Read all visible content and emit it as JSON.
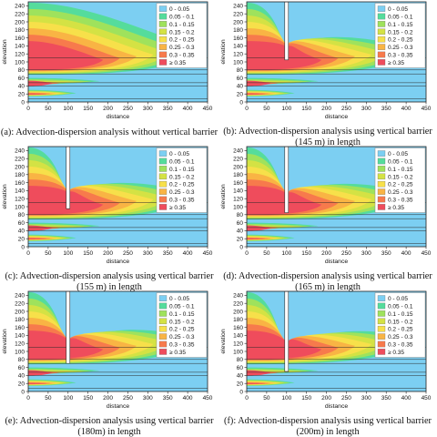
{
  "legend_entries": [
    "0 - 0.05",
    "0.05 - 0.1",
    "0.1 - 0.15",
    "0.15 - 0.2",
    "0.2 - 0.25",
    "0.25 - 0.3",
    "0.3 - 0.35",
    "≥ 0.35"
  ],
  "colors": {
    "band_0": "#7ccff2",
    "band_1": "#55dc9c",
    "band_2": "#9fe25c",
    "band_3": "#d4e244",
    "band_4": "#f7e04a",
    "band_5": "#f9b444",
    "band_6": "#f77a4c",
    "band_7": "#ef4c5c"
  },
  "chart_data": [
    {
      "type": "heatmap",
      "id": "a",
      "xlabel": "distance",
      "ylabel": "elevation",
      "xlim": [
        0,
        450
      ],
      "ylim": [
        0,
        250
      ],
      "x_ticks": [
        0,
        50,
        100,
        150,
        200,
        250,
        300,
        350,
        400,
        450
      ],
      "y_ticks": [
        0,
        20,
        40,
        60,
        80,
        100,
        120,
        140,
        160,
        180,
        200,
        220,
        240
      ],
      "legend": [
        "0 - 0.05",
        "0.05 - 0.1",
        "0.1 - 0.15",
        "0.15 - 0.2",
        "0.2 - 0.25",
        "0.25 - 0.3",
        "0.3 - 0.35",
        "≥ 0.35"
      ],
      "caption_lines": [
        "(a): Advection-dispersion analysis without vertical barrier"
      ],
      "barrier_length_m": null,
      "barrier_bottom_elevation": null
    },
    {
      "type": "heatmap",
      "id": "b",
      "xlabel": "distance",
      "ylabel": "elevation",
      "xlim": [
        0,
        450
      ],
      "ylim": [
        0,
        250
      ],
      "x_ticks": [
        0,
        50,
        100,
        150,
        200,
        250,
        300,
        350,
        400,
        450
      ],
      "y_ticks": [
        0,
        20,
        40,
        60,
        80,
        100,
        120,
        140,
        160,
        180,
        200,
        220,
        240
      ],
      "legend": [
        "0 - 0.05",
        "0.05 - 0.1",
        "0.1 - 0.15",
        "0.15 - 0.2",
        "0.2 - 0.25",
        "0.25 - 0.3",
        "0.3 - 0.35",
        "≥ 0.35"
      ],
      "caption_lines": [
        "(b): Advection-dispersion analysis using vertical barrier",
        "(145 m) in length"
      ],
      "barrier_length_m": 145,
      "barrier_bottom_elevation": 105
    },
    {
      "type": "heatmap",
      "id": "c",
      "xlabel": "distance",
      "ylabel": "elevation",
      "xlim": [
        0,
        450
      ],
      "ylim": [
        0,
        250
      ],
      "x_ticks": [
        0,
        50,
        100,
        150,
        200,
        250,
        300,
        350,
        400,
        450
      ],
      "y_ticks": [
        0,
        20,
        40,
        60,
        80,
        100,
        120,
        140,
        160,
        180,
        200,
        220,
        240
      ],
      "legend": [
        "0 - 0.05",
        "0.05 - 0.1",
        "0.1 - 0.15",
        "0.15 - 0.2",
        "0.2 - 0.25",
        "0.25 - 0.3",
        "0.3 - 0.35",
        "≥ 0.35"
      ],
      "caption_lines": [
        "(c): Advection-dispersion analysis using vertical barrier",
        "(155 m) in length"
      ],
      "barrier_length_m": 155,
      "barrier_bottom_elevation": 95
    },
    {
      "type": "heatmap",
      "id": "d",
      "xlabel": "distance",
      "ylabel": "elevation",
      "xlim": [
        0,
        450
      ],
      "ylim": [
        0,
        250
      ],
      "x_ticks": [
        0,
        50,
        100,
        150,
        200,
        250,
        300,
        350,
        400,
        450
      ],
      "y_ticks": [
        0,
        20,
        40,
        60,
        80,
        100,
        120,
        140,
        160,
        180,
        200,
        220,
        240
      ],
      "legend": [
        "0 - 0.05",
        "0.05 - 0.1",
        "0.1 - 0.15",
        "0.15 - 0.2",
        "0.2 - 0.25",
        "0.25 - 0.3",
        "0.3 - 0.35",
        "≥ 0.35"
      ],
      "caption_lines": [
        "(d): Advection-dispersion analysis using vertical barrier",
        "(165 m) in length"
      ],
      "barrier_length_m": 165,
      "barrier_bottom_elevation": 85
    },
    {
      "type": "heatmap",
      "id": "e",
      "xlabel": "distance",
      "ylabel": "elevation",
      "xlim": [
        0,
        450
      ],
      "ylim": [
        0,
        250
      ],
      "x_ticks": [
        0,
        50,
        100,
        150,
        200,
        250,
        300,
        350,
        400,
        450
      ],
      "y_ticks": [
        0,
        20,
        40,
        60,
        80,
        100,
        120,
        140,
        160,
        180,
        200,
        220,
        240
      ],
      "legend": [
        "0 - 0.05",
        "0.05 - 0.1",
        "0.1 - 0.15",
        "0.15 - 0.2",
        "0.2 - 0.25",
        "0.25 - 0.3",
        "0.3 - 0.35",
        "≥ 0.35"
      ],
      "caption_lines": [
        "(e): Advection-dispersion analysis using vertical barrier",
        "(180m) in length"
      ],
      "barrier_length_m": 180,
      "barrier_bottom_elevation": 70
    },
    {
      "type": "heatmap",
      "id": "f",
      "xlabel": "distance",
      "ylabel": "elevation",
      "xlim": [
        0,
        450
      ],
      "ylim": [
        0,
        250
      ],
      "x_ticks": [
        0,
        50,
        100,
        150,
        200,
        250,
        300,
        350,
        400,
        450
      ],
      "y_ticks": [
        0,
        20,
        40,
        60,
        80,
        100,
        120,
        140,
        160,
        180,
        200,
        220,
        240
      ],
      "legend": [
        "0 - 0.05",
        "0.05 - 0.1",
        "0.1 - 0.15",
        "0.15 - 0.2",
        "0.2 - 0.25",
        "0.25 - 0.3",
        "0.3 - 0.35",
        "≥ 0.35"
      ],
      "caption_lines": [
        "(f): Advection-dispersion analysis using vertical barrier",
        "(200m) in length"
      ],
      "barrier_length_m": 200,
      "barrier_bottom_elevation": 50
    }
  ]
}
